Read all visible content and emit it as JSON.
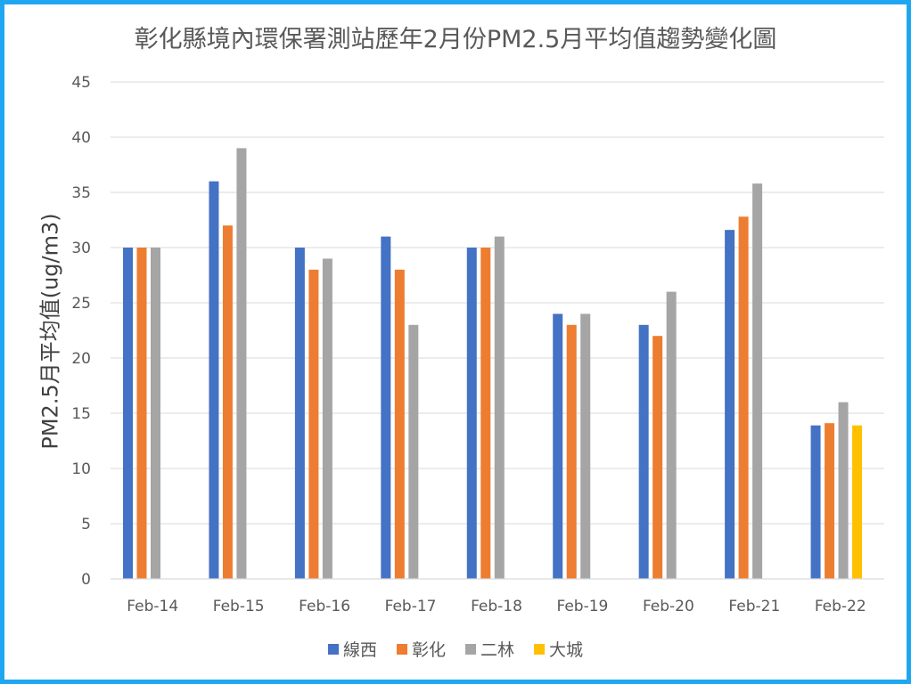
{
  "chart_data": {
    "type": "bar",
    "title": "彰化縣境內環保署測站歷年2月份PM2.5月平均值趨勢變化圖",
    "xlabel": "",
    "ylabel": "PM2.5月平均值(ug/m3)",
    "ylim": [
      0,
      45
    ],
    "yticks": [
      0,
      5,
      10,
      15,
      20,
      25,
      30,
      35,
      40,
      45
    ],
    "grid": true,
    "legend_position": "bottom",
    "categories": [
      "Feb-14",
      "Feb-15",
      "Feb-16",
      "Feb-17",
      "Feb-18",
      "Feb-19",
      "Feb-20",
      "Feb-21",
      "Feb-22"
    ],
    "series": [
      {
        "name": "線西",
        "color": "#4472c4",
        "values": [
          30,
          36,
          30,
          31,
          30,
          24,
          23,
          31.6,
          13.9
        ]
      },
      {
        "name": "彰化",
        "color": "#ed7d31",
        "values": [
          30,
          32,
          28,
          28,
          30,
          23,
          22,
          32.8,
          14.1
        ]
      },
      {
        "name": "二林",
        "color": "#a5a5a5",
        "values": [
          30,
          39,
          29,
          23,
          31,
          24,
          26,
          35.8,
          16
        ]
      },
      {
        "name": "大城",
        "color": "#ffc000",
        "values": [
          null,
          null,
          null,
          null,
          null,
          null,
          null,
          null,
          13.9
        ]
      }
    ]
  }
}
